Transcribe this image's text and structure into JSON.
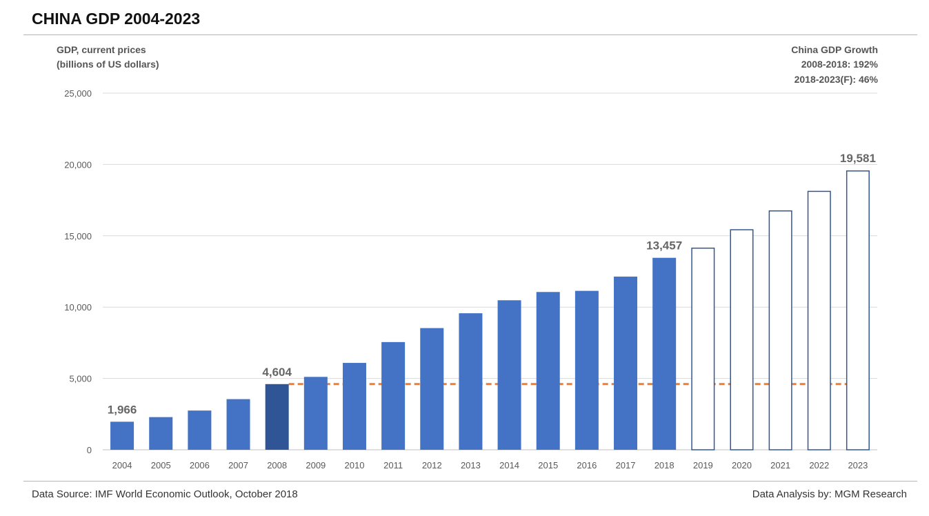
{
  "header": {
    "title": "CHINA GDP 2004-2023"
  },
  "footer": {
    "source": "Data Source: IMF World Economic Outlook, October 2018",
    "analysis": "Data Analysis by: MGM Research"
  },
  "chart_data": {
    "type": "bar",
    "ylabel_lines": [
      "GDP, current prices",
      "(billions of US dollars)"
    ],
    "growth_note": [
      "China GDP Growth",
      "2008-2018: 192%",
      "2018-2023(F): 46%"
    ],
    "categories": [
      "2004",
      "2005",
      "2006",
      "2007",
      "2008",
      "2009",
      "2010",
      "2011",
      "2012",
      "2013",
      "2014",
      "2015",
      "2016",
      "2017",
      "2018",
      "2019",
      "2020",
      "2021",
      "2022",
      "2023"
    ],
    "values": [
      1966,
      2290,
      2750,
      3550,
      4604,
      5110,
      6090,
      7550,
      8530,
      9570,
      10480,
      11060,
      11140,
      12140,
      13457,
      14170,
      15460,
      16780,
      18150,
      19581
    ],
    "forecast_from": "2019",
    "highlight": "2008",
    "reference_line": {
      "value": 4604,
      "from": "2008",
      "to": "2023"
    },
    "data_labels": [
      {
        "category": "2004",
        "text": "1,966"
      },
      {
        "category": "2008",
        "text": "4,604"
      },
      {
        "category": "2018",
        "text": "13,457"
      },
      {
        "category": "2023",
        "text": "19,581"
      }
    ],
    "yticks": [
      0,
      5000,
      10000,
      15000,
      20000,
      25000
    ],
    "ytick_labels": [
      "0",
      "5,000",
      "10,000",
      "15,000",
      "20,000",
      "25,000"
    ],
    "ylim": [
      0,
      25000
    ],
    "grid": true,
    "colors": {
      "actual": "#4472c4",
      "highlight": "#2f5597",
      "forecast_fill": "#ffffff",
      "forecast_stroke": "#2f5597",
      "reference_line": "#ed7d31",
      "grid": "#d9d9d9"
    }
  }
}
